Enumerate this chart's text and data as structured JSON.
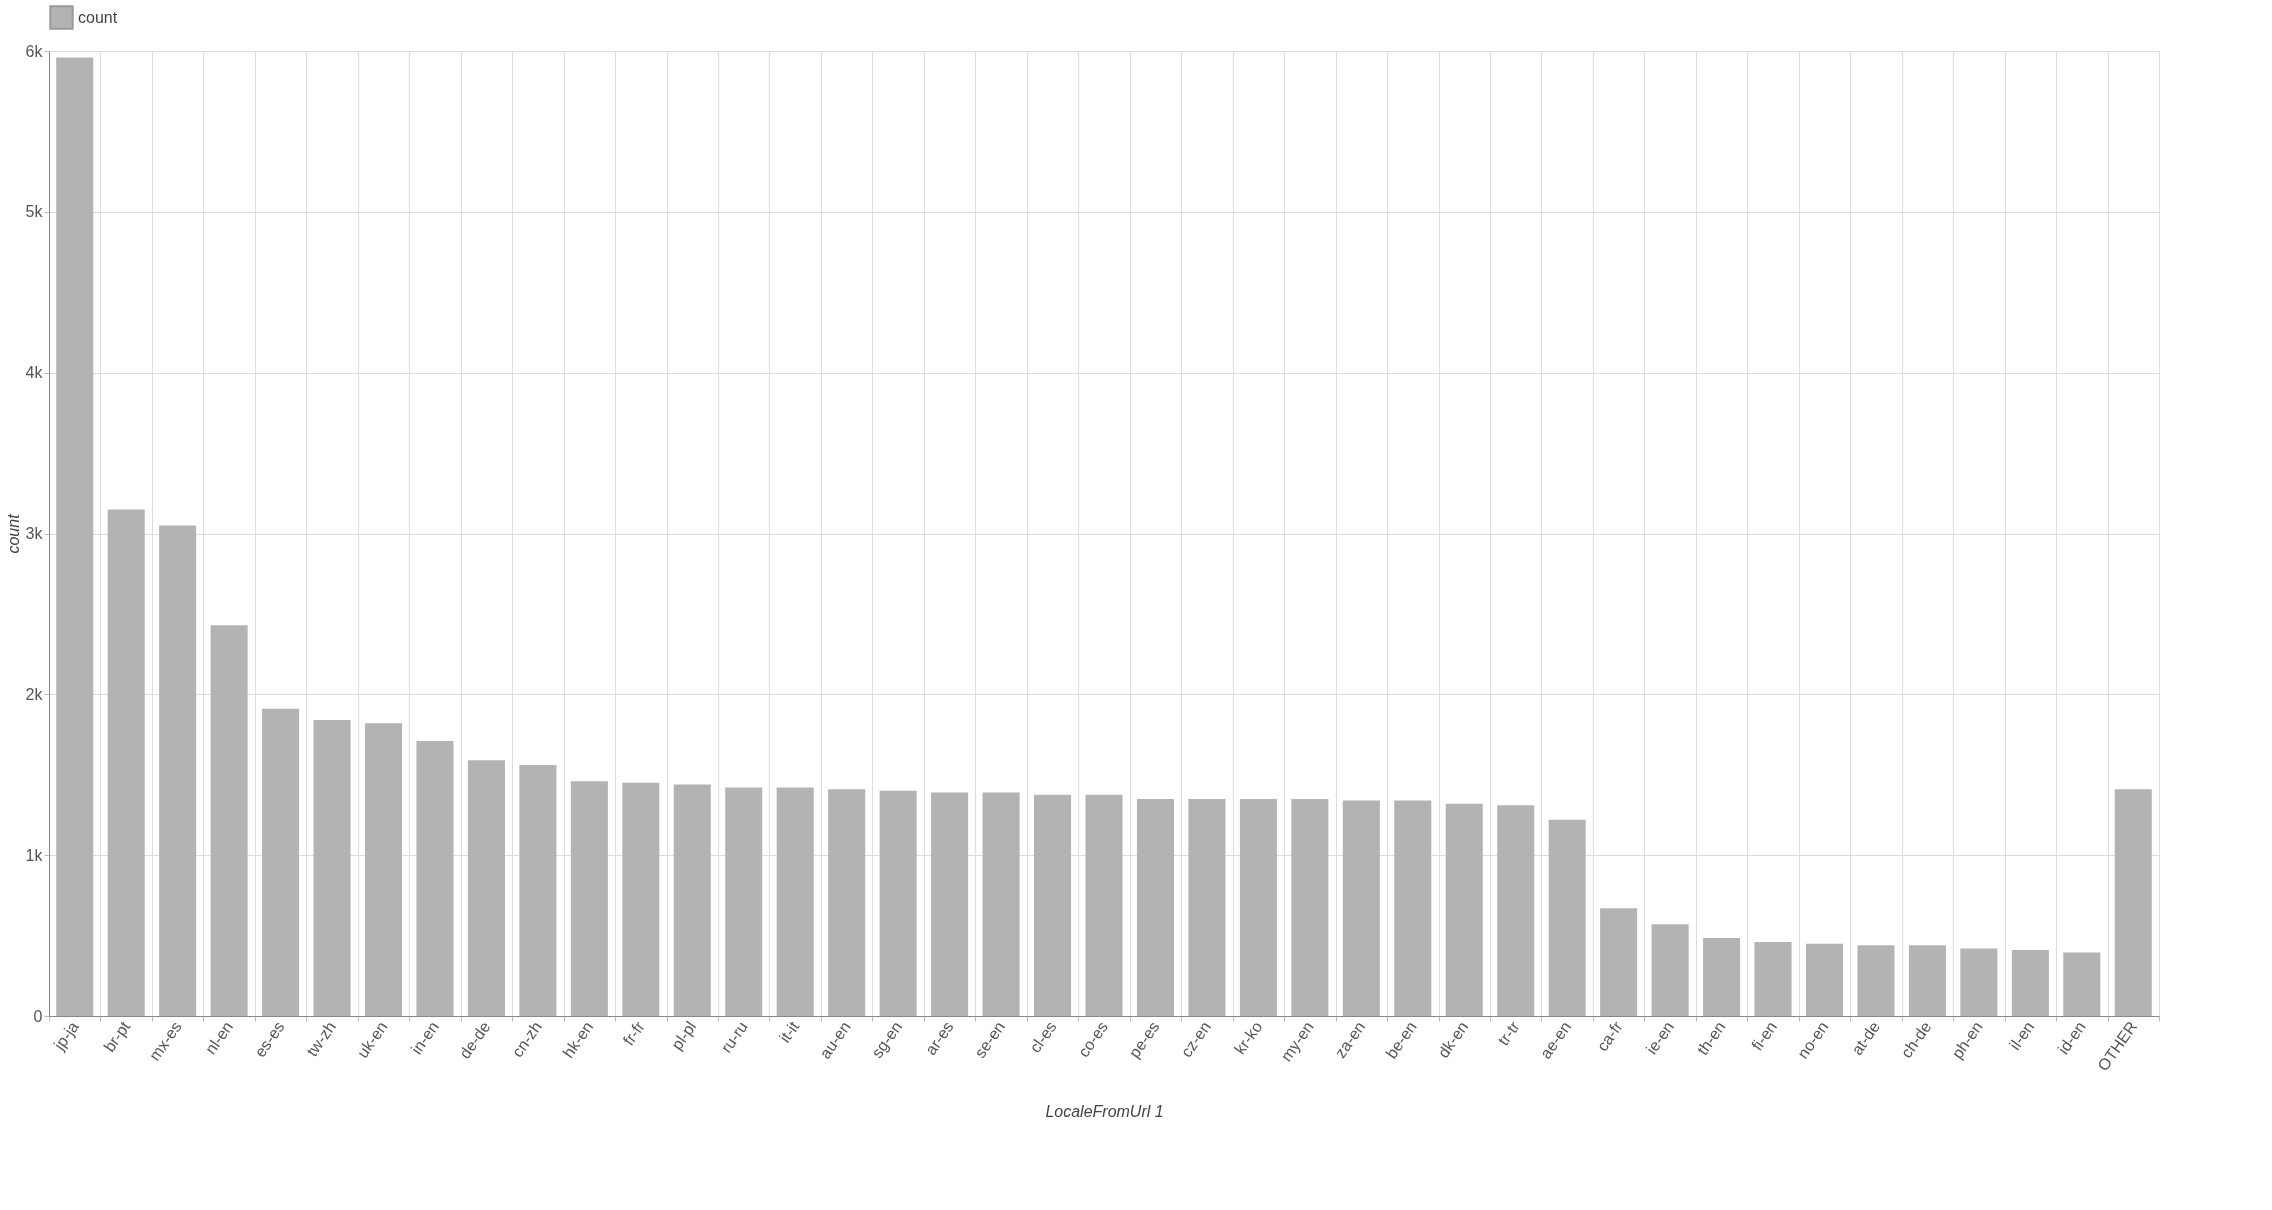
{
  "chart_data": {
    "type": "bar",
    "xlabel": "LocaleFromUrl 1",
    "ylabel": "count",
    "legend": "top",
    "categories": [
      "jp-ja",
      "br-pt",
      "mx-es",
      "nl-en",
      "es-es",
      "tw-zh",
      "uk-en",
      "in-en",
      "de-de",
      "cn-zh",
      "hk-en",
      "fr-fr",
      "pl-pl",
      "ru-ru",
      "it-it",
      "au-en",
      "sg-en",
      "ar-es",
      "se-en",
      "cl-es",
      "co-es",
      "pe-es",
      "cz-en",
      "kr-ko",
      "my-en",
      "za-en",
      "be-en",
      "dk-en",
      "tr-tr",
      "ae-en",
      "ca-fr",
      "ie-en",
      "th-en",
      "fi-en",
      "no-en",
      "at-de",
      "ch-de",
      "ph-en",
      "il-en",
      "id-en",
      "OTHER"
    ],
    "series": [
      {
        "name": "count",
        "color": "#b3b3b3",
        "values": [
          5960,
          3150,
          3050,
          2430,
          1910,
          1840,
          1820,
          1710,
          1590,
          1560,
          1460,
          1450,
          1440,
          1420,
          1420,
          1410,
          1400,
          1390,
          1390,
          1375,
          1375,
          1350,
          1350,
          1350,
          1350,
          1340,
          1340,
          1320,
          1310,
          1220,
          670,
          570,
          485,
          460,
          450,
          440,
          440,
          420,
          410,
          395,
          1410
        ]
      }
    ],
    "ylim": [
      0,
      6000
    ],
    "yticks": [
      0,
      {
        "value": 1000,
        "label": "1k"
      },
      {
        "value": 2000,
        "label": "2k"
      },
      {
        "value": 3000,
        "label": "3k"
      },
      {
        "value": 4000,
        "label": "4k"
      },
      {
        "value": 5000,
        "label": "5k"
      },
      {
        "value": 6000,
        "label": "6k"
      }
    ],
    "grid": true
  }
}
